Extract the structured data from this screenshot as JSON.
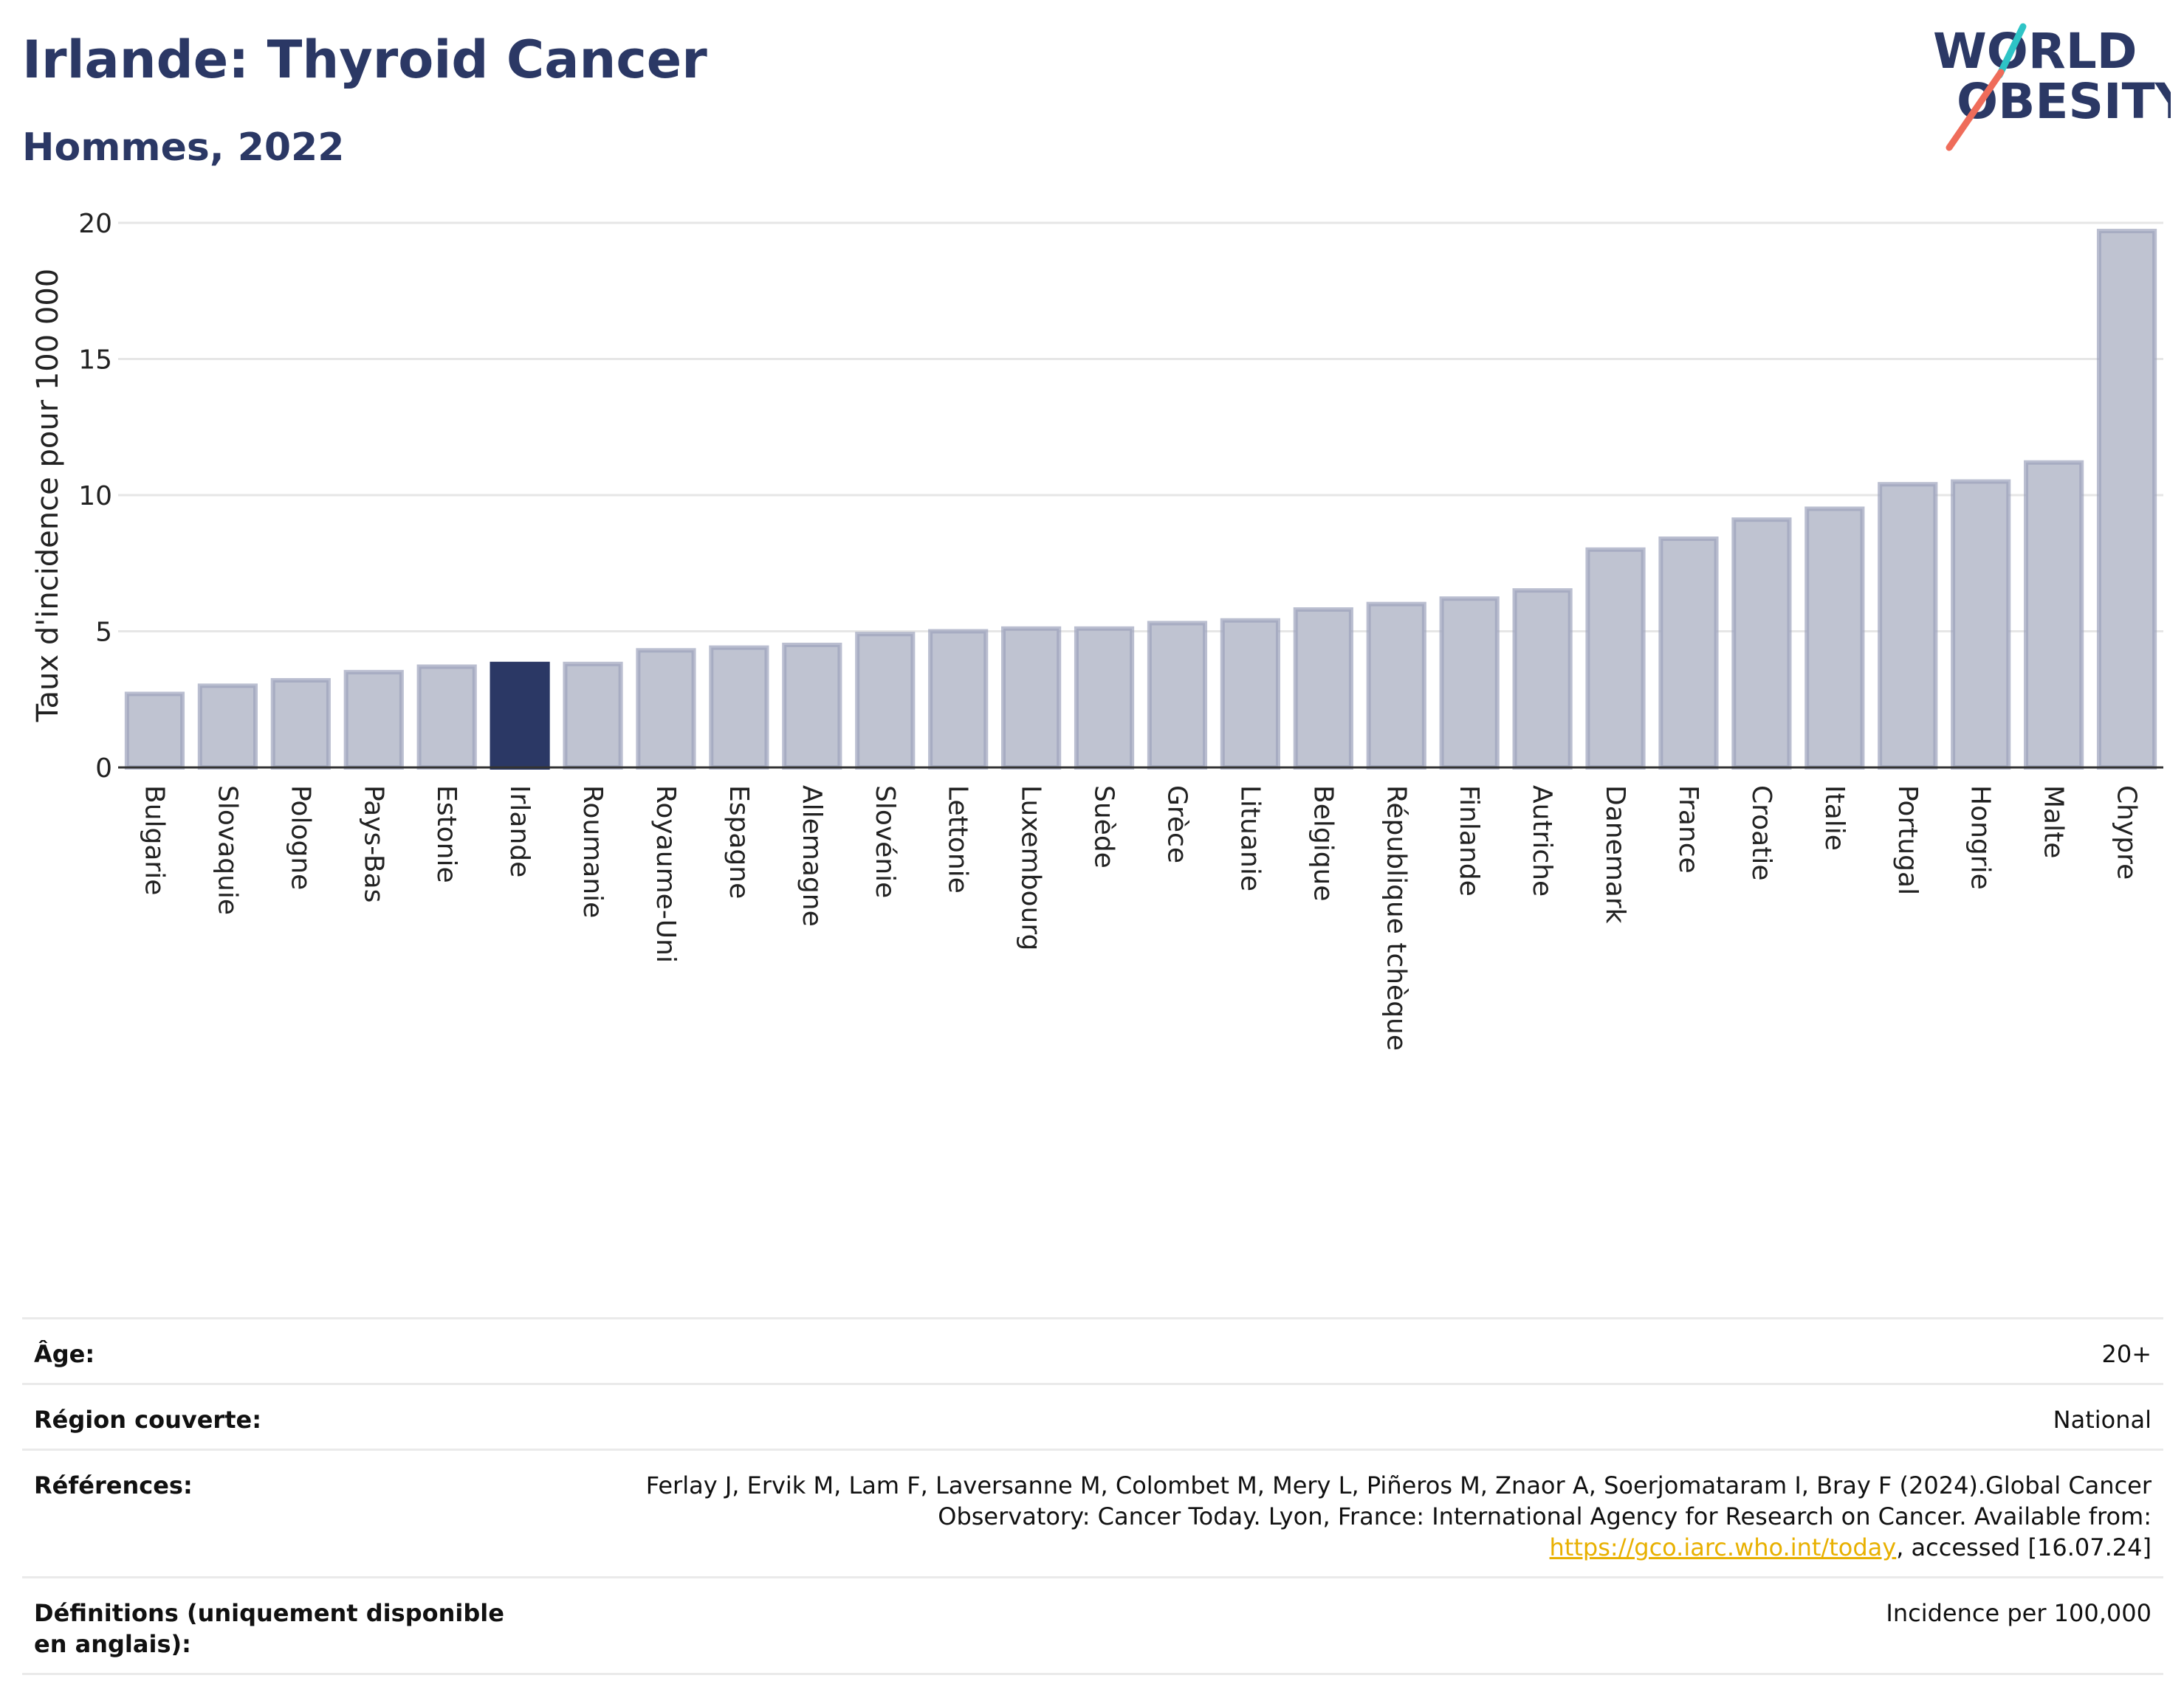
{
  "header": {
    "title": "Irlande: Thyroid Cancer",
    "subtitle": "Hommes, 2022"
  },
  "logo": {
    "line1": "WORLD",
    "line2": "OBESITY",
    "colors": {
      "text": "#2b3865",
      "slash_teal": "#2ec4c6",
      "slash_coral": "#ef6c5a"
    }
  },
  "chart_data": {
    "type": "bar",
    "ylabel": "Taux d'incidence pour 100 000",
    "xlabel": "",
    "ylim": [
      0,
      20
    ],
    "yticks": [
      0,
      5,
      10,
      15,
      20
    ],
    "grid": true,
    "highlight": "Irlande",
    "colors": {
      "bar": "#bfc3d1",
      "bar_edge": "#9da3bc",
      "highlight": "#2b3865",
      "grid": "#e6e6e6",
      "axis": "#333333"
    },
    "categories": [
      "Bulgarie",
      "Slovaquie",
      "Pologne",
      "Pays-Bas",
      "Estonie",
      "Irlande",
      "Roumanie",
      "Royaume-Uni",
      "Espagne",
      "Allemagne",
      "Slovénie",
      "Lettonie",
      "Luxembourg",
      "Suède",
      "Grèce",
      "Lituanie",
      "Belgique",
      "République tchèque",
      "Finlande",
      "Autriche",
      "Danemark",
      "France",
      "Croatie",
      "Italie",
      "Portugal",
      "Hongrie",
      "Malte",
      "Chypre"
    ],
    "values": [
      2.7,
      3.0,
      3.2,
      3.5,
      3.7,
      3.8,
      3.8,
      4.3,
      4.4,
      4.5,
      4.9,
      5.0,
      5.1,
      5.1,
      5.3,
      5.4,
      5.8,
      6.0,
      6.2,
      6.5,
      8.0,
      8.4,
      9.1,
      9.5,
      10.4,
      10.5,
      11.2,
      19.7
    ]
  },
  "meta": {
    "rows": [
      {
        "label": "Âge:",
        "value": "20+"
      },
      {
        "label": "Région couverte:",
        "value": "National"
      },
      {
        "label": "Références:",
        "value_pre": "Ferlay J, Ervik M, Lam F, Laversanne M, Colombet M, Mery L, Piñeros M, Znaor A, Soerjomataram I, Bray F (2024).Global Cancer Observatory: Cancer Today. Lyon, France: International Agency for Research on Cancer. Available from: ",
        "link": "https://gco.iarc.who.int/today",
        "value_post": ", accessed [16.07.24]"
      },
      {
        "label": "Définitions (uniquement disponible en anglais):",
        "value": "Incidence per 100,000"
      }
    ]
  }
}
